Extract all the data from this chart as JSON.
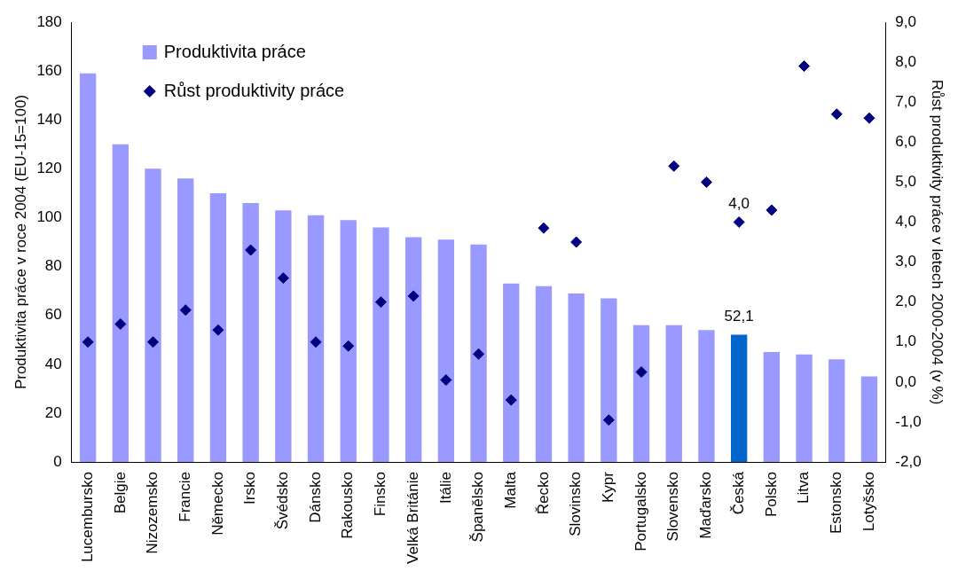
{
  "chart_data": {
    "type": "bar",
    "ylabel": "Produktivita práce v roce 2004 (EU-15=100)",
    "y2label": "Růst produktivity práce v letech 2000-2004 (v %)",
    "categories": [
      "Lucembursko",
      "Belgie",
      "Nizozemsko",
      "Francie",
      "Německo",
      "Irsko",
      "Švédsko",
      "Dánsko",
      "Rakousko",
      "Finsko",
      "Velká Británie",
      "Itálie",
      "Španělsko",
      "Malta",
      "Řecko",
      "Slovinsko",
      "Kypr",
      "Portugalsko",
      "Slovensko",
      "Maďarsko",
      "Česká",
      "Polsko",
      "Litva",
      "Estonsko",
      "Lotyšsko"
    ],
    "series": [
      {
        "name": "Produktivita práce",
        "color": "#9999ff",
        "colors": [
          "#9999ff",
          "#9999ff",
          "#9999ff",
          "#9999ff",
          "#9999ff",
          "#9999ff",
          "#9999ff",
          "#9999ff",
          "#9999ff",
          "#9999ff",
          "#9999ff",
          "#9999ff",
          "#9999ff",
          "#9999ff",
          "#9999ff",
          "#9999ff",
          "#9999ff",
          "#9999ff",
          "#9999ff",
          "#9999ff",
          "#0066cc",
          "#9999ff",
          "#9999ff",
          "#9999ff",
          "#9999ff"
        ],
        "values": [
          159,
          130,
          120,
          116,
          110,
          106,
          103,
          101,
          99,
          96,
          92,
          91,
          89,
          73,
          72,
          69,
          67,
          56,
          56,
          54,
          52.1,
          45,
          44,
          42,
          35
        ],
        "value_labels": [
          null,
          null,
          null,
          null,
          null,
          null,
          null,
          null,
          null,
          null,
          null,
          null,
          null,
          null,
          null,
          null,
          null,
          null,
          null,
          null,
          "52,1",
          null,
          null,
          null,
          null
        ]
      },
      {
        "type": "scatter",
        "name": "Růst produktivity práce",
        "color": "#000080",
        "axis": "y2",
        "marker": "diamond",
        "values": [
          1.0,
          1.45,
          1.0,
          1.8,
          1.3,
          3.3,
          2.6,
          1.0,
          0.9,
          2.0,
          2.15,
          0.05,
          0.7,
          -0.45,
          3.85,
          3.5,
          -0.95,
          0.25,
          5.4,
          5.0,
          4.0,
          4.3,
          7.9,
          6.7,
          6.6
        ],
        "value_labels": [
          null,
          null,
          null,
          null,
          null,
          null,
          null,
          null,
          null,
          null,
          null,
          null,
          null,
          null,
          null,
          null,
          null,
          null,
          null,
          null,
          "4,0",
          null,
          null,
          null,
          null
        ]
      }
    ],
    "ylim": [
      0,
      180
    ],
    "yticks": [
      0,
      20,
      40,
      60,
      80,
      100,
      120,
      140,
      160,
      180
    ],
    "y2lim": [
      -2,
      9
    ],
    "y2ticks": [
      {
        "value": -2,
        "label": "-2,0"
      },
      {
        "value": -1,
        "label": "-1,0"
      },
      {
        "value": 0,
        "label": "0,0"
      },
      {
        "value": 1,
        "label": "1,0"
      },
      {
        "value": 2,
        "label": "2,0"
      },
      {
        "value": 3,
        "label": "3,0"
      },
      {
        "value": 4,
        "label": "4,0"
      },
      {
        "value": 5,
        "label": "5,0"
      },
      {
        "value": 6,
        "label": "6,0"
      },
      {
        "value": 7,
        "label": "7,0"
      },
      {
        "value": 8,
        "label": "8,0"
      },
      {
        "value": 9,
        "label": "9,0"
      }
    ],
    "grid": false,
    "legend": "top left"
  }
}
